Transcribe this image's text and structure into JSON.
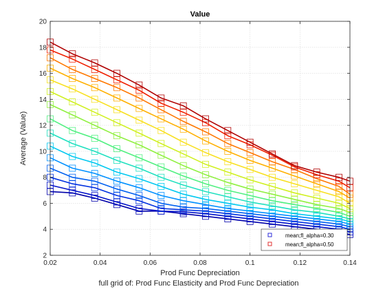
{
  "chart_data": {
    "type": "line",
    "title": "Value",
    "xlabel": "Prod Func Depreciation",
    "ylabel": "Average (Value)",
    "caption": "full grid of: Prod Func Elasticity and Prod Func Depreciation",
    "xlim": [
      0.02,
      0.14
    ],
    "ylim": [
      2,
      20
    ],
    "xticks": [
      "0.02",
      "0.04",
      "0.06",
      "0.08",
      "0.1",
      "0.12",
      "0.14"
    ],
    "yticks": [
      "2",
      "4",
      "6",
      "8",
      "10",
      "12",
      "14",
      "16",
      "18",
      "20"
    ],
    "grid": true,
    "legend_position": "bottom-right",
    "x": [
      0.02,
      0.0289,
      0.0378,
      0.0467,
      0.0556,
      0.0644,
      0.0733,
      0.0822,
      0.0911,
      0.1,
      0.1089,
      0.1178,
      0.1267,
      0.1356,
      0.14
    ],
    "legend": [
      {
        "label": "mean;fl_alpha=0.30",
        "marker": "square",
        "color": "#2b2bd9"
      },
      {
        "label": "mean;fl_alpha=0.50",
        "marker": "square",
        "color": "#e03030"
      }
    ],
    "series": [
      {
        "color": "#0000aa",
        "values": [
          6.9,
          6.8,
          6.4,
          5.9,
          5.4,
          5.4,
          5.2,
          5.0,
          4.8,
          4.6,
          4.4,
          4.2,
          4.0,
          3.8,
          3.6
        ]
      },
      {
        "color": "#0010c8",
        "values": [
          7.4,
          7.0,
          6.6,
          6.1,
          5.6,
          5.4,
          5.35,
          5.2,
          5.0,
          4.8,
          4.6,
          4.4,
          4.2,
          4.0,
          3.8
        ]
      },
      {
        "color": "#0030e0",
        "values": [
          8.0,
          7.5,
          7.2,
          6.6,
          6.2,
          5.6,
          5.5,
          5.4,
          5.2,
          5.0,
          4.8,
          4.6,
          4.4,
          4.2,
          4.0
        ]
      },
      {
        "color": "#0060f0",
        "values": [
          8.7,
          8.0,
          7.7,
          7.1,
          6.6,
          6.0,
          5.7,
          5.6,
          5.4,
          5.2,
          5.0,
          4.8,
          4.6,
          4.4,
          4.2
        ]
      },
      {
        "color": "#0090ff",
        "values": [
          9.5,
          8.7,
          8.3,
          7.7,
          7.2,
          6.6,
          6.2,
          5.9,
          5.6,
          5.4,
          5.2,
          5.0,
          4.8,
          4.6,
          4.4
        ]
      },
      {
        "color": "#00c8f0",
        "values": [
          10.4,
          9.6,
          9.1,
          8.4,
          7.9,
          7.3,
          6.7,
          6.3,
          6.0,
          5.7,
          5.5,
          5.2,
          5.0,
          4.8,
          4.6
        ]
      },
      {
        "color": "#20e0c0",
        "values": [
          11.4,
          10.6,
          10.0,
          9.3,
          8.7,
          8.0,
          7.4,
          6.9,
          6.5,
          6.1,
          5.8,
          5.5,
          5.3,
          5.0,
          4.8
        ]
      },
      {
        "color": "#50f080",
        "values": [
          12.5,
          11.6,
          11.0,
          10.2,
          9.5,
          8.8,
          8.1,
          7.5,
          7.0,
          6.6,
          6.2,
          5.9,
          5.6,
          5.3,
          5.0
        ]
      },
      {
        "color": "#90f040",
        "values": [
          13.6,
          12.8,
          12.0,
          11.2,
          10.5,
          9.7,
          8.9,
          8.2,
          7.6,
          7.1,
          6.7,
          6.3,
          5.9,
          5.6,
          5.3
        ]
      },
      {
        "color": "#d0f020",
        "values": [
          14.6,
          13.8,
          13.0,
          12.2,
          11.4,
          10.6,
          9.8,
          9.0,
          8.4,
          7.8,
          7.3,
          6.8,
          6.4,
          6.0,
          5.6
        ]
      },
      {
        "color": "#f8e020",
        "values": [
          15.5,
          14.8,
          14.0,
          13.2,
          12.4,
          11.6,
          10.7,
          9.9,
          9.2,
          8.6,
          8.0,
          7.5,
          7.0,
          6.5,
          6.0
        ]
      },
      {
        "color": "#ffb000",
        "values": [
          16.4,
          15.6,
          14.9,
          14.1,
          13.3,
          12.5,
          11.7,
          10.8,
          10.0,
          9.3,
          8.7,
          8.1,
          7.5,
          6.9,
          6.4
        ]
      },
      {
        "color": "#ff7800",
        "values": [
          17.2,
          16.3,
          15.6,
          14.9,
          14.1,
          13.2,
          12.3,
          11.5,
          10.6,
          9.9,
          9.2,
          8.6,
          7.9,
          7.3,
          6.7
        ]
      },
      {
        "color": "#f02000",
        "values": [
          17.8,
          17.1,
          16.3,
          15.5,
          14.7,
          13.7,
          13.0,
          12.2,
          11.2,
          10.5,
          9.7,
          8.8,
          8.2,
          7.7,
          7.2
        ]
      },
      {
        "color": "#b00000",
        "values": [
          18.4,
          17.5,
          16.8,
          16.0,
          15.1,
          14.1,
          13.5,
          12.5,
          11.6,
          10.7,
          9.8,
          8.9,
          8.4,
          8.0,
          7.7
        ]
      }
    ]
  }
}
